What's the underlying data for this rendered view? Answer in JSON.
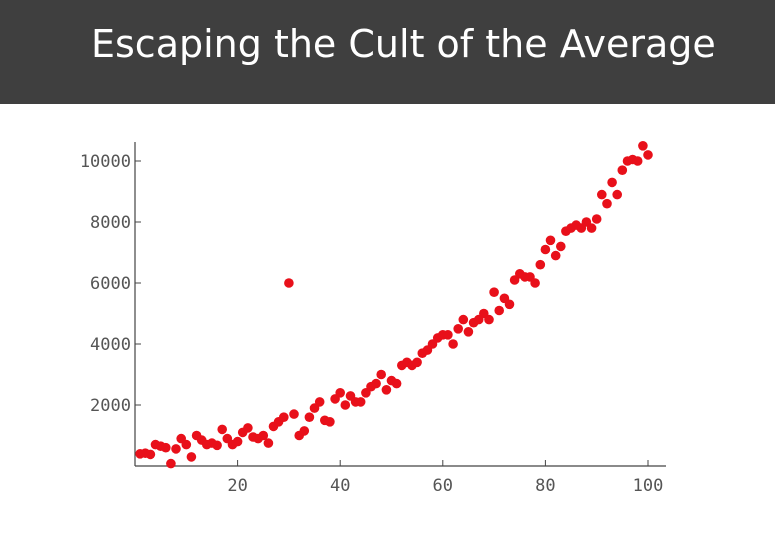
{
  "slide": {
    "title": "Escaping the Cult of the Average"
  },
  "colors": {
    "title_bar": "#3f3f3f",
    "title_text": "#ffffff",
    "point": "#e8101a",
    "axis": "#444444"
  },
  "chart_data": {
    "type": "scatter",
    "title": "",
    "xlabel": "",
    "ylabel": "",
    "xlim": [
      0,
      105
    ],
    "ylim": [
      0,
      10800
    ],
    "grid": false,
    "x_ticks": [
      20,
      40,
      60,
      80,
      100
    ],
    "y_ticks": [
      2000,
      4000,
      6000,
      8000,
      10000
    ],
    "points": [
      [
        1,
        400
      ],
      [
        2,
        420
      ],
      [
        3,
        380
      ],
      [
        4,
        700
      ],
      [
        5,
        650
      ],
      [
        6,
        600
      ],
      [
        7,
        80
      ],
      [
        8,
        560
      ],
      [
        9,
        900
      ],
      [
        10,
        700
      ],
      [
        11,
        300
      ],
      [
        12,
        1000
      ],
      [
        13,
        850
      ],
      [
        14,
        700
      ],
      [
        15,
        750
      ],
      [
        16,
        680
      ],
      [
        17,
        1200
      ],
      [
        18,
        900
      ],
      [
        19,
        700
      ],
      [
        20,
        800
      ],
      [
        21,
        1100
      ],
      [
        22,
        1250
      ],
      [
        23,
        950
      ],
      [
        24,
        900
      ],
      [
        25,
        1000
      ],
      [
        26,
        750
      ],
      [
        27,
        1300
      ],
      [
        28,
        1450
      ],
      [
        29,
        1600
      ],
      [
        30,
        6000
      ],
      [
        31,
        1700
      ],
      [
        32,
        1000
      ],
      [
        33,
        1150
      ],
      [
        34,
        1600
      ],
      [
        35,
        1900
      ],
      [
        36,
        2100
      ],
      [
        37,
        1500
      ],
      [
        38,
        1450
      ],
      [
        39,
        2200
      ],
      [
        40,
        2400
      ],
      [
        41,
        2000
      ],
      [
        42,
        2300
      ],
      [
        43,
        2100
      ],
      [
        44,
        2100
      ],
      [
        45,
        2400
      ],
      [
        46,
        2600
      ],
      [
        47,
        2700
      ],
      [
        48,
        3000
      ],
      [
        49,
        2500
      ],
      [
        50,
        2800
      ],
      [
        51,
        2700
      ],
      [
        52,
        3300
      ],
      [
        53,
        3400
      ],
      [
        54,
        3300
      ],
      [
        55,
        3400
      ],
      [
        56,
        3700
      ],
      [
        57,
        3800
      ],
      [
        58,
        4000
      ],
      [
        59,
        4200
      ],
      [
        60,
        4300
      ],
      [
        61,
        4300
      ],
      [
        62,
        4000
      ],
      [
        63,
        4500
      ],
      [
        64,
        4800
      ],
      [
        65,
        4400
      ],
      [
        66,
        4700
      ],
      [
        67,
        4800
      ],
      [
        68,
        5000
      ],
      [
        69,
        4800
      ],
      [
        70,
        5700
      ],
      [
        71,
        5100
      ],
      [
        72,
        5500
      ],
      [
        73,
        5300
      ],
      [
        74,
        6100
      ],
      [
        75,
        6300
      ],
      [
        76,
        6200
      ],
      [
        77,
        6200
      ],
      [
        78,
        6000
      ],
      [
        79,
        6600
      ],
      [
        80,
        7100
      ],
      [
        81,
        7400
      ],
      [
        82,
        6900
      ],
      [
        83,
        7200
      ],
      [
        84,
        7700
      ],
      [
        85,
        7800
      ],
      [
        86,
        7900
      ],
      [
        87,
        7800
      ],
      [
        88,
        8000
      ],
      [
        89,
        7800
      ],
      [
        90,
        8100
      ],
      [
        91,
        8900
      ],
      [
        92,
        8600
      ],
      [
        93,
        9300
      ],
      [
        94,
        8900
      ],
      [
        95,
        9700
      ],
      [
        96,
        10000
      ],
      [
        97,
        10050
      ],
      [
        98,
        10000
      ],
      [
        99,
        10500
      ],
      [
        100,
        10200
      ]
    ]
  }
}
